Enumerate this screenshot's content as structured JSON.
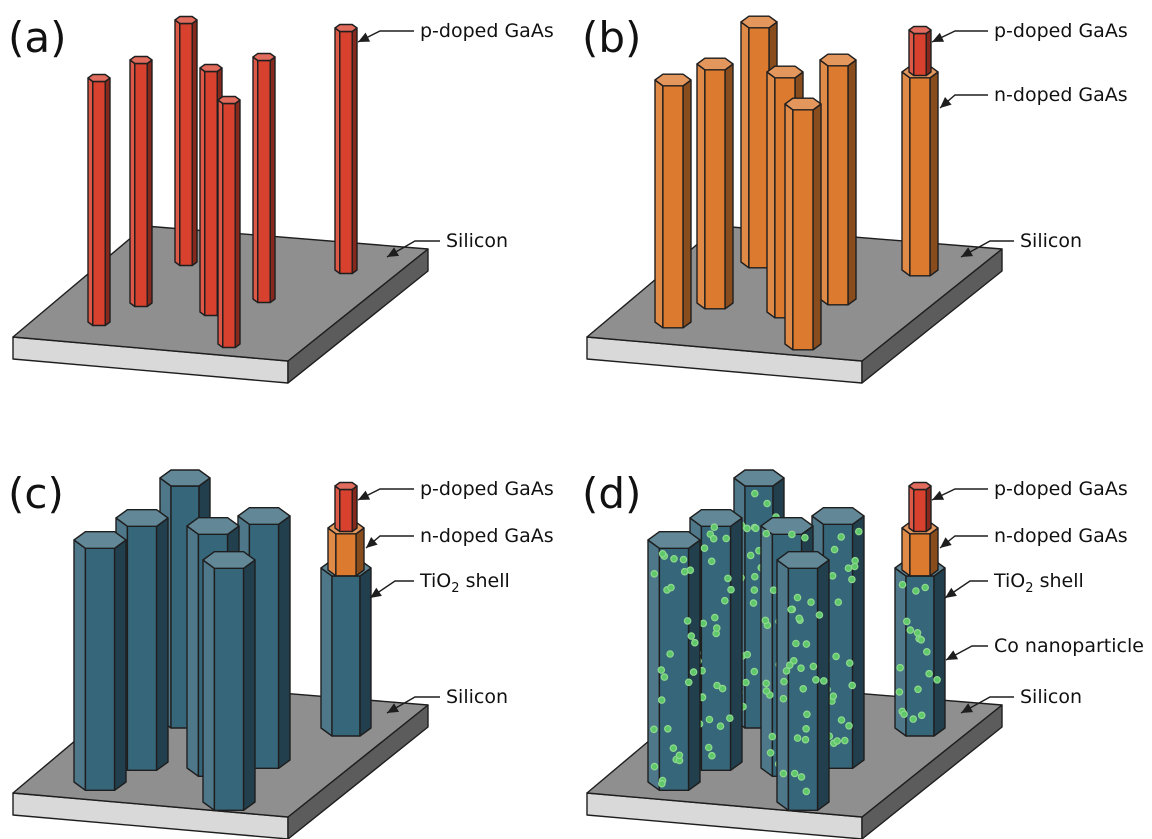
{
  "panels": [
    {
      "letter": "(a)",
      "callouts": {
        "p_gaas": "p-doped GaAs",
        "silicon": "Silicon"
      }
    },
    {
      "letter": "(b)",
      "callouts": {
        "p_gaas": "p-doped GaAs",
        "n_gaas": "n-doped GaAs",
        "silicon": "Silicon"
      }
    },
    {
      "letter": "(c)",
      "callouts": {
        "p_gaas": "p-doped GaAs",
        "n_gaas": "n-doped GaAs",
        "tio2_main": "TiO",
        "tio2_sub": "2",
        "tio2_rest": " shell",
        "silicon": "Silicon"
      }
    },
    {
      "letter": "(d)",
      "callouts": {
        "p_gaas": "p-doped GaAs",
        "n_gaas": "n-doped GaAs",
        "tio2_main": "TiO",
        "tio2_sub": "2",
        "tio2_rest": " shell",
        "co": "Co nanoparticle",
        "silicon": "Silicon"
      }
    }
  ],
  "colors": {
    "p_gaas": "#d9412f",
    "n_gaas": "#dc7a2f",
    "tio2_shell": "#36667a",
    "co_particle": "#5ec86a",
    "silicon_top": "#8f8f8f",
    "silicon_side_front": "#d9d9d9",
    "silicon_side_right": "#5c5c5c"
  }
}
